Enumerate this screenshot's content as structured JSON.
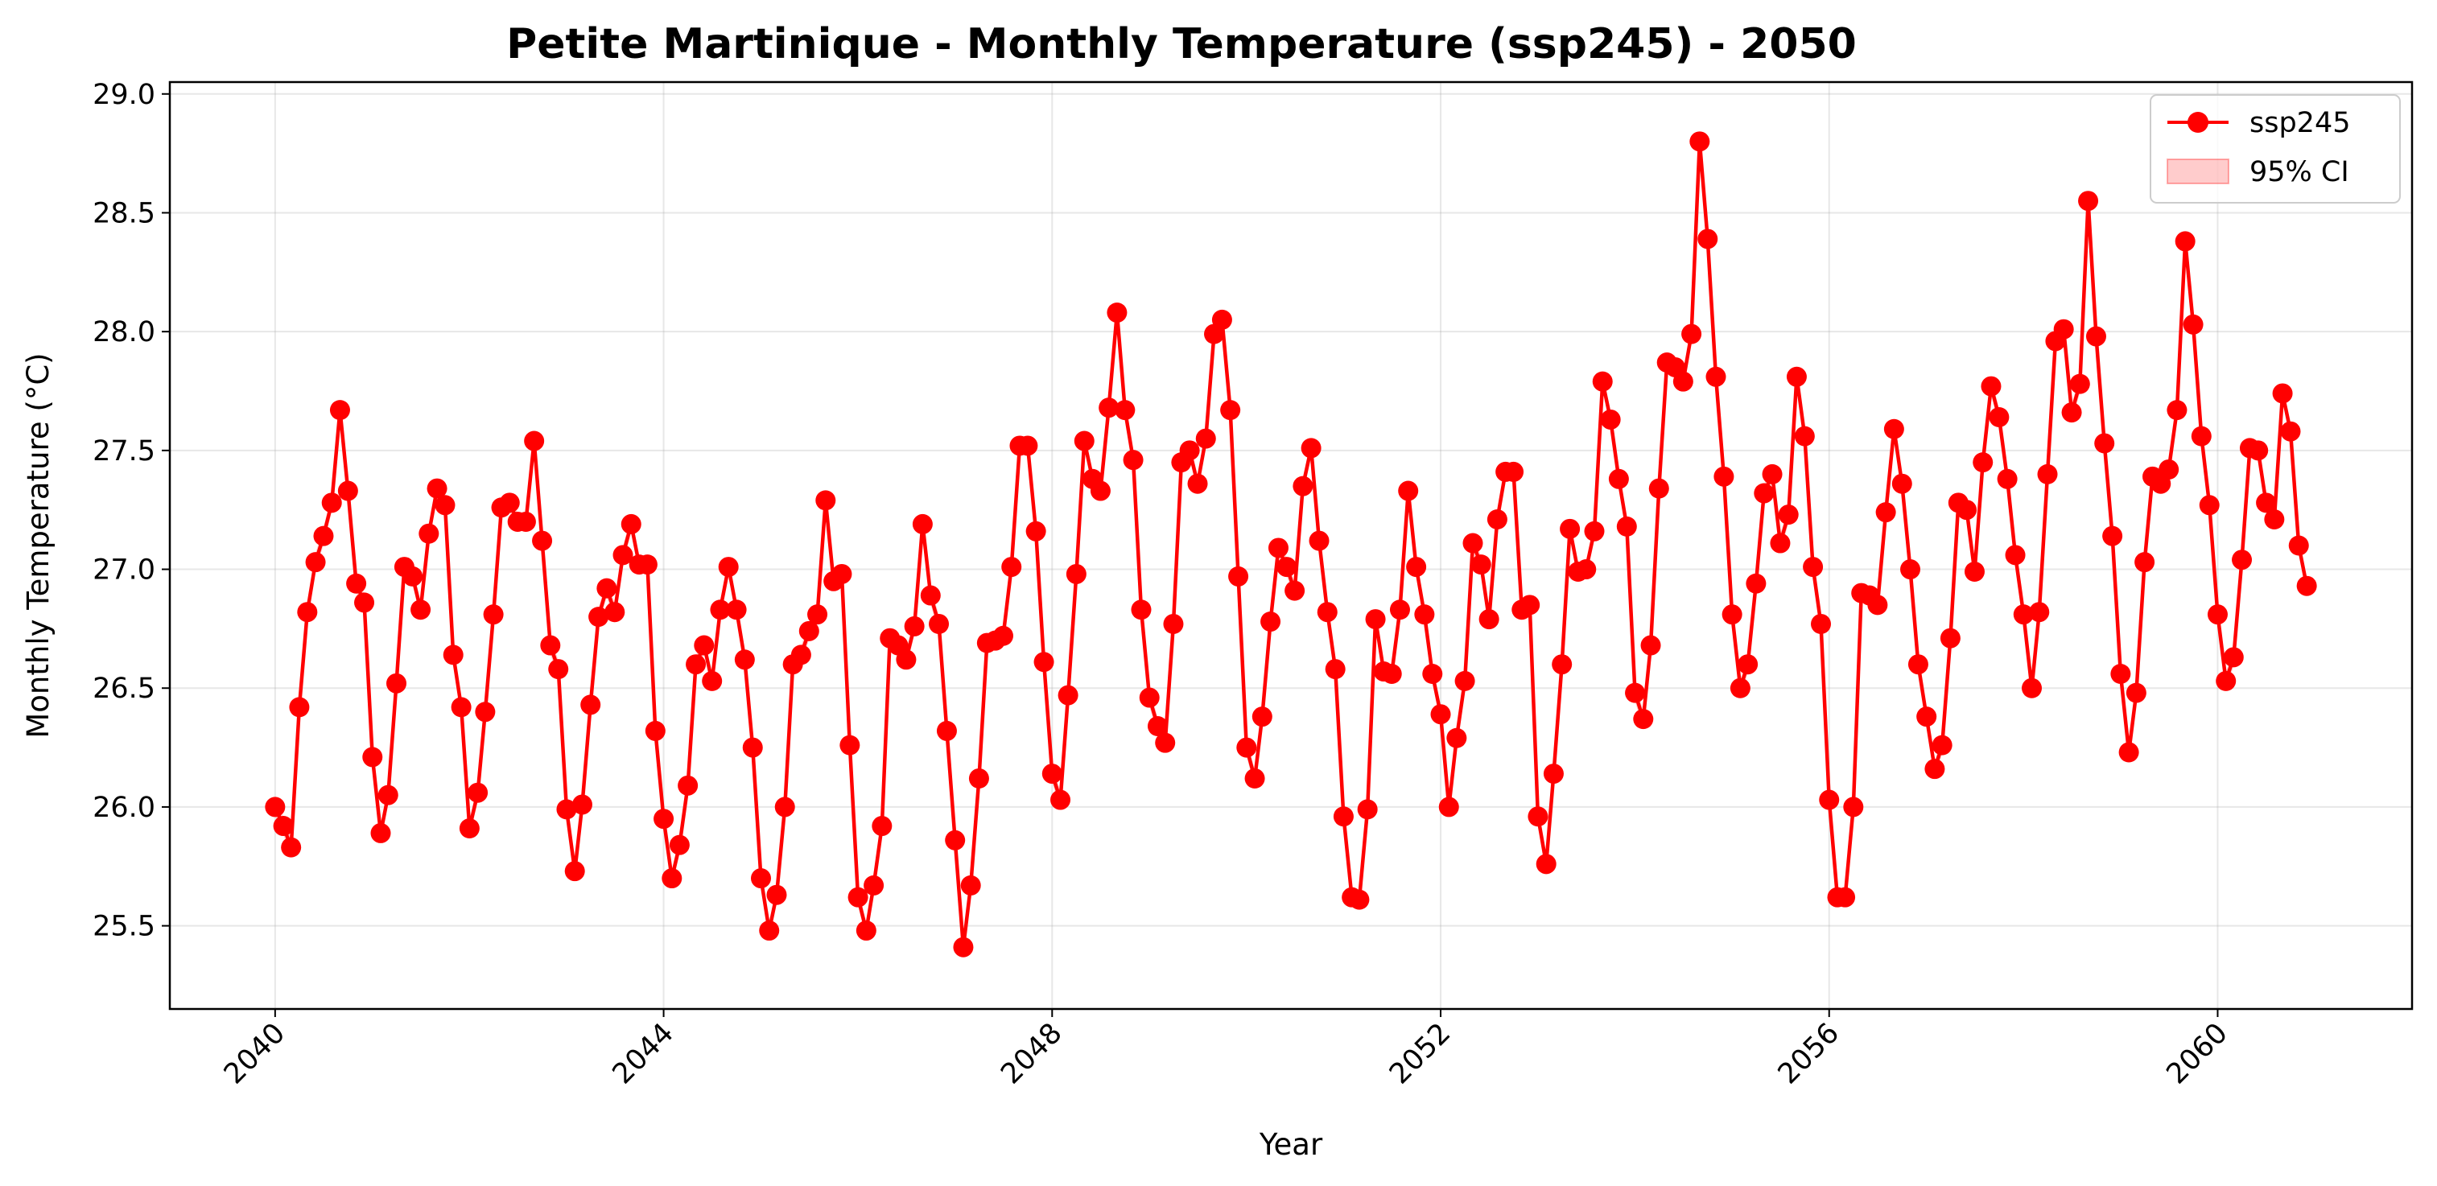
{
  "chart_data": {
    "type": "line",
    "title": "Petite Martinique - Monthly Temperature (ssp245) - 2050",
    "xlabel": "Year",
    "ylabel": "Monthly Temperature (°C)",
    "x_range": [
      "2038-12-01",
      "2062-01-01"
    ],
    "ylim": [
      25.15,
      29.05
    ],
    "y_ticks": [
      25.5,
      26.0,
      26.5,
      27.0,
      27.5,
      28.0,
      28.5,
      29.0
    ],
    "y_tick_labels": [
      "25.5",
      "26.0",
      "26.5",
      "27.0",
      "27.5",
      "28.0",
      "28.5",
      "29.0"
    ],
    "x_ticks": [
      "2040-01-01",
      "2044-01-01",
      "2048-01-01",
      "2052-01-01",
      "2056-01-01",
      "2060-01-01"
    ],
    "x_tick_labels": [
      "2040",
      "2044",
      "2048",
      "2052",
      "2056",
      "2060"
    ],
    "grid": true,
    "legend_position": "top-right",
    "start_date": "2040-01",
    "frequency": "monthly",
    "series": [
      {
        "name": "ssp245",
        "color": "#ff0000",
        "marker": "circle",
        "values": [
          26.0,
          25.92,
          25.83,
          26.42,
          26.82,
          27.03,
          27.14,
          27.28,
          27.67,
          27.33,
          26.94,
          26.86,
          26.21,
          25.89,
          26.05,
          26.52,
          27.01,
          26.97,
          26.83,
          27.15,
          27.34,
          27.27,
          26.64,
          26.42,
          25.91,
          26.06,
          26.4,
          26.81,
          27.26,
          27.28,
          27.2,
          27.2,
          27.54,
          27.12,
          26.68,
          26.58,
          25.99,
          25.73,
          26.01,
          26.43,
          26.8,
          26.92,
          26.82,
          27.06,
          27.19,
          27.02,
          27.02,
          26.32,
          25.95,
          25.7,
          25.84,
          26.09,
          26.6,
          26.68,
          26.53,
          26.83,
          27.01,
          26.83,
          26.62,
          26.25,
          25.7,
          25.48,
          25.63,
          26.0,
          26.6,
          26.64,
          26.74,
          26.81,
          27.29,
          26.95,
          26.98,
          26.26,
          25.62,
          25.48,
          25.67,
          25.92,
          26.71,
          26.68,
          26.62,
          26.76,
          27.19,
          26.89,
          26.77,
          26.32,
          25.86,
          25.41,
          25.67,
          26.12,
          26.69,
          26.7,
          26.72,
          27.01,
          27.52,
          27.52,
          27.16,
          26.61,
          26.14,
          26.03,
          26.47,
          26.98,
          27.54,
          27.38,
          27.33,
          27.68,
          28.08,
          27.67,
          27.46,
          26.83,
          26.46,
          26.34,
          26.27,
          26.77,
          27.45,
          27.5,
          27.36,
          27.55,
          27.99,
          28.05,
          27.67,
          26.97,
          26.25,
          26.12,
          26.38,
          26.78,
          27.09,
          27.01,
          26.91,
          27.35,
          27.51,
          27.12,
          26.82,
          26.58,
          25.96,
          25.62,
          25.61,
          25.99,
          26.79,
          26.57,
          26.56,
          26.83,
          27.33,
          27.01,
          26.81,
          26.56,
          26.39,
          26.0,
          26.29,
          26.53,
          27.11,
          27.02,
          26.79,
          27.21,
          27.41,
          27.41,
          26.83,
          26.85,
          25.96,
          25.76,
          26.14,
          26.6,
          27.17,
          26.99,
          27.0,
          27.16,
          27.79,
          27.63,
          27.38,
          27.18,
          26.48,
          26.37,
          26.68,
          27.34,
          27.87,
          27.85,
          27.79,
          27.99,
          28.8,
          28.39,
          27.81,
          27.39,
          26.81,
          26.5,
          26.6,
          26.94,
          27.32,
          27.4,
          27.11,
          27.23,
          27.81,
          27.56,
          27.01,
          26.77,
          26.03,
          25.62,
          25.62,
          26.0,
          26.9,
          26.89,
          26.85,
          27.24,
          27.59,
          27.36,
          27.0,
          26.6,
          26.38,
          26.16,
          26.26,
          26.71,
          27.28,
          27.25,
          26.99,
          27.45,
          27.77,
          27.64,
          27.38,
          27.06,
          26.81,
          26.5,
          26.82,
          27.4,
          27.96,
          28.01,
          27.66,
          27.78,
          28.55,
          27.98,
          27.53,
          27.14,
          26.56,
          26.23,
          26.48,
          27.03,
          27.39,
          27.36,
          27.42,
          27.67,
          28.38,
          28.03,
          27.56,
          27.27,
          26.81,
          26.53,
          26.63,
          27.04,
          27.51,
          27.5,
          27.28,
          27.21,
          27.74,
          27.58,
          27.1,
          26.93
        ]
      }
    ],
    "ci": {
      "name": "95% CI",
      "color": "#ff0000"
    }
  }
}
